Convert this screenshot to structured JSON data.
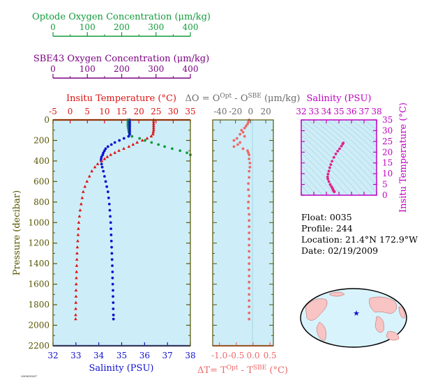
{
  "colors": {
    "optode": "#129a3c",
    "sbe": "#7a0080",
    "temperature": "#e01010",
    "salinity": "#1010d0",
    "delta": "#ee6868",
    "delta_text": "#6c6c6c",
    "salinity_purple": "#c000c0",
    "pressure_axis": "#585400",
    "plot_bg": "#cdeef8"
  },
  "optode_axis": {
    "title": "Optode Oxygen Concentration (μm/kg)",
    "ticks": [
      "0",
      "100",
      "200",
      "300",
      "400"
    ]
  },
  "sbe_axis": {
    "title": "SBE43 Oxygen Concentration (μm/kg)",
    "ticks": [
      "0",
      "100",
      "200",
      "300",
      "400"
    ]
  },
  "temp_axis": {
    "title": "Insitu Temperature (°C)",
    "ticks": [
      "-5",
      "0",
      "5",
      "10",
      "15",
      "20",
      "25",
      "30",
      "35"
    ]
  },
  "sal_axis": {
    "title": "Salinity (PSU)",
    "ticks": [
      "32",
      "33",
      "34",
      "35",
      "36",
      "37",
      "38"
    ]
  },
  "pressure_axis": {
    "title": "Pressure (decibar)",
    "ticks": [
      "0",
      "200",
      "400",
      "600",
      "800",
      "1000",
      "1200",
      "1400",
      "1600",
      "1800",
      "2000",
      "2200"
    ]
  },
  "delta_o_axis": {
    "title_prefix": "ΔO = O",
    "sup1": "Opt",
    "mid": " - O",
    "sup2": "SBE",
    "suffix": " (μm/kg)",
    "ticks": [
      "-40",
      "-20",
      "0",
      "20"
    ]
  },
  "delta_t_axis": {
    "title_prefix": "ΔT= T",
    "sup1": "Opt",
    "mid": " - T",
    "sup2": "SBE",
    "suffix": " (°C)",
    "ticks": [
      "-1.0",
      "-0.5",
      "0.0",
      "0.5"
    ]
  },
  "ts_salinity_axis": {
    "title": "Salinity (PSU)",
    "ticks": [
      "32",
      "33",
      "34",
      "35",
      "36",
      "37",
      "38"
    ]
  },
  "ts_temp_axis": {
    "title": "Insitu Temperature (°C)",
    "ticks": [
      "0",
      "5",
      "10",
      "15",
      "20",
      "25",
      "30",
      "35"
    ]
  },
  "info": {
    "float": "Float:  0035",
    "profile": "Profile:  244",
    "location": "Location:  21.4°N  172.9°W",
    "date": "Date:  02/19/2009"
  },
  "footer_code": "2009/03/07",
  "chart_data": [
    {
      "type": "scatter",
      "title": "Profile",
      "ylabel": "Pressure (decibar)",
      "ylim": [
        0,
        2200
      ],
      "y_inverted": true,
      "series": [
        {
          "name": "Insitu Temperature (°C)",
          "xlim": [
            -5,
            35
          ],
          "points": [
            [
              24.3,
              0
            ],
            [
              24.3,
              20
            ],
            [
              24.3,
              40
            ],
            [
              24.3,
              60
            ],
            [
              24.3,
              80
            ],
            [
              24.3,
              100
            ],
            [
              24.2,
              120
            ],
            [
              24.1,
              140
            ],
            [
              23.6,
              160
            ],
            [
              22.4,
              180
            ],
            [
              21.0,
              200
            ],
            [
              19.5,
              220
            ],
            [
              18.3,
              240
            ],
            [
              17.1,
              260
            ],
            [
              15.6,
              280
            ],
            [
              14.2,
              300
            ],
            [
              13.0,
              320
            ],
            [
              11.8,
              340
            ],
            [
              10.8,
              360
            ],
            [
              10.0,
              380
            ],
            [
              9.2,
              400
            ],
            [
              8.0,
              430
            ],
            [
              7.2,
              460
            ],
            [
              6.3,
              500
            ],
            [
              5.6,
              550
            ],
            [
              4.9,
              600
            ],
            [
              4.3,
              650
            ],
            [
              3.8,
              700
            ],
            [
              3.5,
              760
            ],
            [
              3.2,
              820
            ],
            [
              2.9,
              880
            ],
            [
              2.7,
              940
            ],
            [
              2.5,
              1000
            ],
            [
              2.4,
              1060
            ],
            [
              2.3,
              1120
            ],
            [
              2.2,
              1180
            ],
            [
              2.1,
              1240
            ],
            [
              2.0,
              1300
            ],
            [
              1.95,
              1360
            ],
            [
              1.9,
              1420
            ],
            [
              1.85,
              1480
            ],
            [
              1.8,
              1540
            ],
            [
              1.75,
              1600
            ],
            [
              1.7,
              1660
            ],
            [
              1.68,
              1720
            ],
            [
              1.65,
              1780
            ],
            [
              1.62,
              1840
            ],
            [
              1.6,
              1900
            ],
            [
              1.58,
              1940
            ]
          ]
        },
        {
          "name": "Salinity (PSU)",
          "xlim": [
            32,
            38
          ],
          "points": [
            [
              35.35,
              0
            ],
            [
              35.35,
              20
            ],
            [
              35.35,
              40
            ],
            [
              35.35,
              60
            ],
            [
              35.35,
              80
            ],
            [
              35.35,
              100
            ],
            [
              35.35,
              120
            ],
            [
              35.35,
              140
            ],
            [
              35.3,
              160
            ],
            [
              35.1,
              180
            ],
            [
              34.9,
              200
            ],
            [
              34.7,
              220
            ],
            [
              34.55,
              240
            ],
            [
              34.4,
              260
            ],
            [
              34.3,
              280
            ],
            [
              34.25,
              300
            ],
            [
              34.2,
              320
            ],
            [
              34.17,
              340
            ],
            [
              34.12,
              360
            ],
            [
              34.1,
              380
            ],
            [
              34.1,
              400
            ],
            [
              34.12,
              430
            ],
            [
              34.15,
              460
            ],
            [
              34.2,
              500
            ],
            [
              34.25,
              550
            ],
            [
              34.3,
              600
            ],
            [
              34.35,
              650
            ],
            [
              34.4,
              700
            ],
            [
              34.43,
              760
            ],
            [
              34.46,
              820
            ],
            [
              34.48,
              880
            ],
            [
              34.5,
              940
            ],
            [
              34.52,
              1000
            ],
            [
              34.53,
              1060
            ],
            [
              34.54,
              1120
            ],
            [
              34.55,
              1180
            ],
            [
              34.56,
              1240
            ],
            [
              34.57,
              1300
            ],
            [
              34.58,
              1360
            ],
            [
              34.59,
              1420
            ],
            [
              34.6,
              1480
            ],
            [
              34.6,
              1540
            ],
            [
              34.61,
              1600
            ],
            [
              34.62,
              1660
            ],
            [
              34.62,
              1720
            ],
            [
              34.63,
              1780
            ],
            [
              34.63,
              1840
            ],
            [
              34.64,
              1900
            ],
            [
              34.64,
              1940
            ]
          ]
        },
        {
          "name": "Optode Oxygen Concentration (μm/kg)",
          "xlim": [
            0,
            400
          ],
          "points": [
            [
              218,
              0
            ],
            [
              218,
              20
            ],
            [
              218,
              40
            ],
            [
              218,
              60
            ],
            [
              219,
              80
            ],
            [
              220,
              100
            ],
            [
              221,
              120
            ],
            [
              223,
              140
            ],
            [
              230,
              160
            ],
            [
              252,
              180
            ],
            [
              268,
              200
            ],
            [
              287,
              220
            ],
            [
              307,
              240
            ],
            [
              325,
              260
            ],
            [
              347,
              280
            ],
            [
              370,
              300
            ],
            [
              390,
              320
            ],
            [
              400,
              340
            ]
          ]
        }
      ]
    },
    {
      "type": "scatter",
      "title": "ΔO = O Opt - O SBE (μm/kg)",
      "xlabel": "ΔT= T Opt - T SBE (°C)",
      "xlim_top": [
        -50,
        30
      ],
      "xlim_bottom": [
        -1.2,
        0.6
      ],
      "ylim": [
        0,
        2200
      ],
      "series": [
        {
          "name": "ΔO",
          "points": [
            [
              -2,
              0
            ],
            [
              -3,
              20
            ],
            [
              -4,
              40
            ],
            [
              -6,
              60
            ],
            [
              -8,
              80
            ],
            [
              -12,
              100
            ],
            [
              -10,
              120
            ],
            [
              -14,
              140
            ],
            [
              -8,
              160
            ],
            [
              -18,
              180
            ],
            [
              -22,
              200
            ],
            [
              -14,
              220
            ],
            [
              -17,
              240
            ],
            [
              -22,
              260
            ],
            [
              -10,
              280
            ],
            [
              -4,
              300
            ],
            [
              -3,
              320
            ],
            [
              -2,
              340
            ],
            [
              -2,
              380
            ],
            [
              -1,
              420
            ],
            [
              -1,
              460
            ],
            [
              -2,
              500
            ],
            [
              -2,
              560
            ],
            [
              -3,
              620
            ],
            [
              -3,
              680
            ],
            [
              -2,
              740
            ],
            [
              -3,
              800
            ],
            [
              -3,
              860
            ],
            [
              -2,
              920
            ],
            [
              -2,
              980
            ],
            [
              -2,
              1040
            ],
            [
              -2,
              1100
            ],
            [
              -2,
              1160
            ],
            [
              -2,
              1220
            ],
            [
              -2,
              1280
            ],
            [
              -2,
              1340
            ],
            [
              -2,
              1400
            ],
            [
              -2,
              1460
            ],
            [
              -2,
              1520
            ],
            [
              -2,
              1580
            ],
            [
              -2,
              1640
            ],
            [
              -2,
              1700
            ],
            [
              -2,
              1760
            ],
            [
              -2,
              1820
            ],
            [
              -2,
              1880
            ],
            [
              -2,
              1940
            ]
          ]
        }
      ]
    },
    {
      "type": "scatter",
      "title": "Salinity (PSU)",
      "ylabel": "Insitu Temperature (°C)",
      "xlim": [
        32,
        38
      ],
      "ylim": [
        0,
        35
      ],
      "series": [
        {
          "name": "T-S",
          "points": [
            [
              35.35,
              24.3
            ],
            [
              35.3,
              23.8
            ],
            [
              35.2,
              22.8
            ],
            [
              35.05,
              21.6
            ],
            [
              34.9,
              20.5
            ],
            [
              34.75,
              19.2
            ],
            [
              34.6,
              17.6
            ],
            [
              34.45,
              15.8
            ],
            [
              34.35,
              14.2
            ],
            [
              34.27,
              12.8
            ],
            [
              34.2,
              11.2
            ],
            [
              34.13,
              9.8
            ],
            [
              34.1,
              8.5
            ],
            [
              34.12,
              7.5
            ],
            [
              34.2,
              6.3
            ],
            [
              34.3,
              5.0
            ],
            [
              34.4,
              4.0
            ],
            [
              34.48,
              3.3
            ],
            [
              34.53,
              2.6
            ],
            [
              34.57,
              2.1
            ],
            [
              34.61,
              1.8
            ],
            [
              34.64,
              1.6
            ]
          ]
        }
      ]
    }
  ]
}
